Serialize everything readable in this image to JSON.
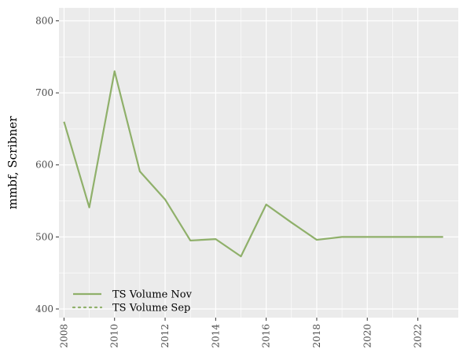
{
  "chart_data": {
    "type": "line",
    "title": "",
    "xlabel": "",
    "ylabel": "mmbf, Scribner",
    "xlim": [
      2007.8,
      2023.6
    ],
    "ylim": [
      388,
      818
    ],
    "x_ticks": [
      2008,
      2010,
      2012,
      2014,
      2016,
      2018,
      2020,
      2022
    ],
    "y_ticks": [
      400,
      500,
      600,
      700,
      800
    ],
    "grid": true,
    "legend_position": "bottom-left",
    "colors": {
      "panel": "#ebebeb",
      "grid": "#ffffff",
      "series": "#8fb06a"
    },
    "series": [
      {
        "name": "TS Volume Nov",
        "style": "solid",
        "x": [
          2008,
          2009,
          2010,
          2011,
          2012,
          2013,
          2014,
          2015,
          2016,
          2017,
          2018,
          2019,
          2020,
          2021,
          2022,
          2023
        ],
        "values": [
          660,
          541,
          730,
          591,
          552,
          495,
          497,
          473,
          545,
          520,
          496,
          500,
          500,
          500,
          500,
          500
        ]
      },
      {
        "name": "TS Volume Sep",
        "style": "dotted",
        "x": [],
        "values": []
      }
    ]
  }
}
